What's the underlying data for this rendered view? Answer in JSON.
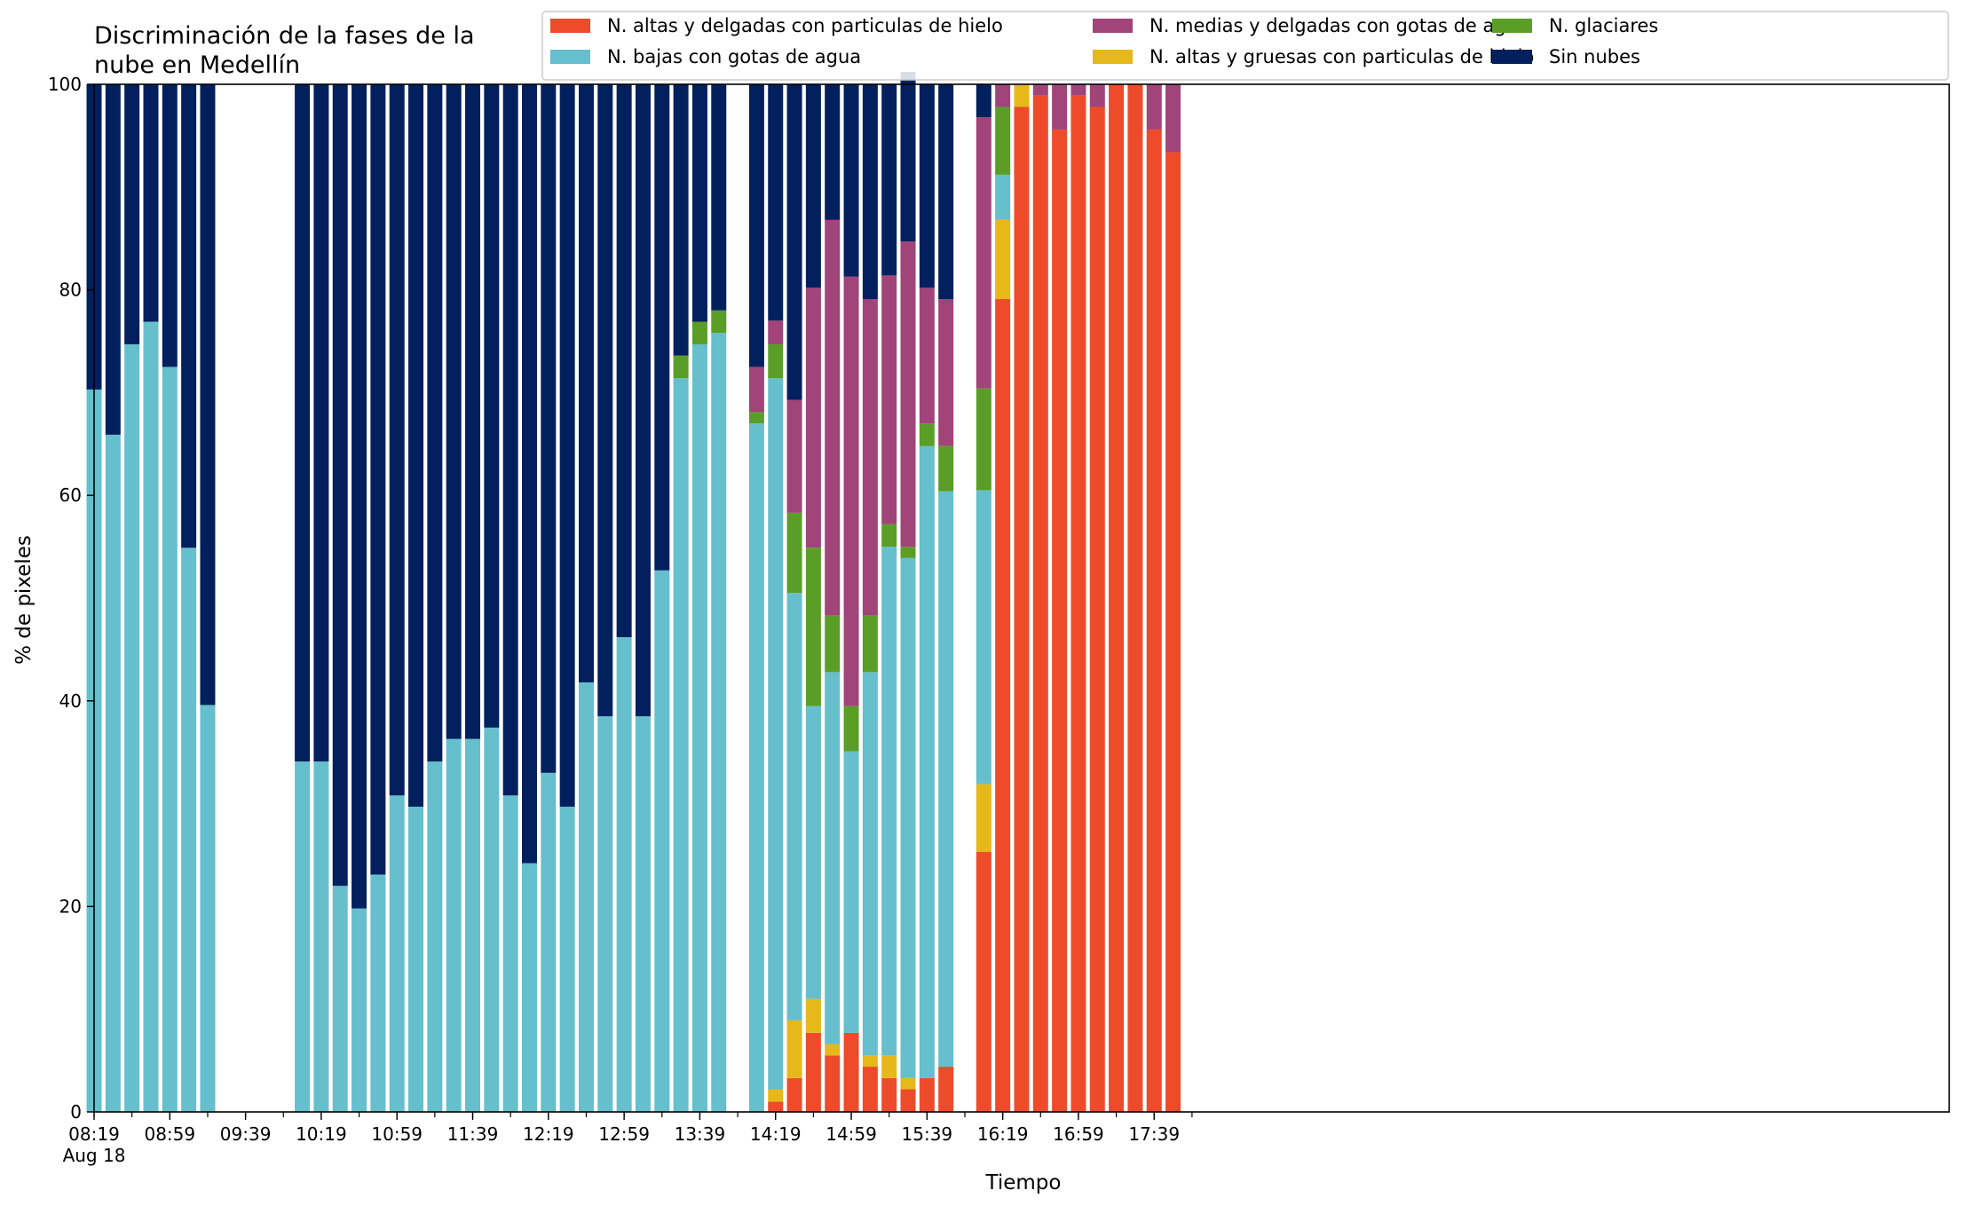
{
  "chart_data": {
    "type": "bar",
    "stacked": true,
    "title_lines": [
      "Discriminación de la fases de la",
      "nube en Medellín"
    ],
    "xlabel": "Tiempo",
    "ylabel": "% de pixeles",
    "ylim": [
      0,
      100
    ],
    "yticks": [
      0,
      20,
      40,
      60,
      80,
      100
    ],
    "x_start_minute": 499,
    "x_end_minute": 1079,
    "bar_interval_minutes": 10,
    "xtick_labels": [
      {
        "minute": 499,
        "label": "08:19",
        "sub": "Aug 18"
      },
      {
        "minute": 539,
        "label": "08:59"
      },
      {
        "minute": 579,
        "label": "09:39"
      },
      {
        "minute": 619,
        "label": "10:19"
      },
      {
        "minute": 659,
        "label": "10:59"
      },
      {
        "minute": 699,
        "label": "11:39"
      },
      {
        "minute": 739,
        "label": "12:19"
      },
      {
        "minute": 779,
        "label": "12:59"
      },
      {
        "minute": 819,
        "label": "13:39"
      },
      {
        "minute": 859,
        "label": "14:19"
      },
      {
        "minute": 899,
        "label": "14:59"
      },
      {
        "minute": 939,
        "label": "15:39"
      },
      {
        "minute": 979,
        "label": "16:19"
      },
      {
        "minute": 1019,
        "label": "16:59"
      },
      {
        "minute": 1059,
        "label": "17:39"
      }
    ],
    "legend_position": "top-right",
    "legend_order": [
      0,
      2,
      4,
      1,
      3,
      5
    ],
    "series": [
      {
        "name": "N. altas y delgadas con particulas de hielo",
        "color": "#ee4b2b",
        "values": [
          0,
          0,
          0,
          0,
          0,
          0,
          0,
          null,
          null,
          null,
          null,
          0,
          0,
          0,
          0,
          0,
          0,
          0,
          0,
          0,
          0,
          0,
          0,
          0,
          0,
          0,
          0,
          0,
          0,
          0,
          0,
          0,
          0,
          0,
          null,
          0,
          1,
          3.3,
          7.7,
          5.5,
          7.7,
          4.4,
          3.3,
          2.2,
          3.3,
          4.4,
          null,
          25.3,
          79.1,
          97.8,
          98.9,
          95.6,
          98.9,
          97.8,
          100,
          100,
          95.6,
          93.4
        ]
      },
      {
        "name": "N. altas y gruesas con particulas de hielo",
        "color": "#e6b81a",
        "values": [
          0,
          0,
          0,
          0,
          0,
          0,
          0,
          null,
          null,
          null,
          null,
          0,
          0,
          0,
          0,
          0,
          0,
          0,
          0,
          0,
          0,
          0,
          0,
          0,
          0,
          0,
          0,
          0,
          0,
          0,
          0,
          0,
          0,
          0,
          null,
          0,
          1.2,
          5.6,
          3.3,
          1.1,
          0,
          1.1,
          2.2,
          1.1,
          0,
          0,
          null,
          6.6,
          7.7,
          2.2,
          0,
          0,
          0,
          0,
          0,
          0,
          0,
          0
        ]
      },
      {
        "name": "N. bajas con gotas de agua",
        "color": "#66bfcc",
        "values": [
          70.3,
          65.9,
          74.7,
          76.9,
          72.5,
          54.9,
          39.6,
          null,
          null,
          null,
          null,
          34.1,
          34.1,
          22,
          19.8,
          23.1,
          30.8,
          29.7,
          34.1,
          36.3,
          36.3,
          37.4,
          30.8,
          24.2,
          33,
          29.7,
          41.8,
          38.5,
          46.2,
          38.5,
          52.7,
          71.4,
          74.7,
          75.8,
          null,
          67,
          69.2,
          41.6,
          28.5,
          36.2,
          27.4,
          37.3,
          49.5,
          50.6,
          61.5,
          56,
          null,
          28.6,
          4.4,
          0,
          0,
          0,
          0,
          0,
          0,
          0,
          0,
          0
        ]
      },
      {
        "name": "N. glaciares",
        "color": "#5a9e28",
        "values": [
          0,
          0,
          0,
          0,
          0,
          0,
          0,
          null,
          null,
          null,
          null,
          0,
          0,
          0,
          0,
          0,
          0,
          0,
          0,
          0,
          0,
          0,
          0,
          0,
          0,
          0,
          0,
          0,
          0,
          0,
          0,
          2.2,
          2.2,
          2.2,
          null,
          1.1,
          3.3,
          7.8,
          15.4,
          5.5,
          4.4,
          5.5,
          2.2,
          1.1,
          2.2,
          4.4,
          null,
          9.9,
          6.6,
          0,
          0,
          0,
          0,
          0,
          0,
          0,
          0,
          0
        ]
      },
      {
        "name": "N. medias y delgadas con gotas de agua",
        "color": "#a0447a",
        "values": [
          0,
          0,
          0,
          0,
          0,
          0,
          0,
          null,
          null,
          null,
          null,
          0,
          0,
          0,
          0,
          0,
          0,
          0,
          0,
          0,
          0,
          0,
          0,
          0,
          0,
          0,
          0,
          0,
          0,
          0,
          0,
          0,
          0,
          0,
          null,
          4.4,
          2.3,
          11,
          25.3,
          38.5,
          41.8,
          30.8,
          24.2,
          29.7,
          13.2,
          14.3,
          null,
          26.4,
          2.2,
          0,
          1.1,
          4.4,
          1.1,
          2.2,
          0,
          0,
          4.4,
          6.6
        ]
      },
      {
        "name": "Sin nubes",
        "color": "#03205e",
        "values": [
          29.7,
          34.1,
          25.3,
          23.1,
          27.5,
          45.1,
          60.4,
          null,
          null,
          null,
          null,
          65.9,
          65.9,
          78,
          80.2,
          76.9,
          69.2,
          70.3,
          65.9,
          63.7,
          63.7,
          62.6,
          69.2,
          75.8,
          67,
          70.3,
          58.2,
          61.5,
          53.8,
          61.5,
          47.3,
          26.4,
          23.1,
          22,
          null,
          27.5,
          23,
          30.7,
          19.8,
          13.2,
          18.7,
          20.9,
          18.6,
          16.5,
          19.8,
          20.9,
          null,
          3.2,
          0,
          0,
          0,
          0,
          0,
          0,
          0,
          0,
          0,
          0
        ]
      }
    ]
  }
}
